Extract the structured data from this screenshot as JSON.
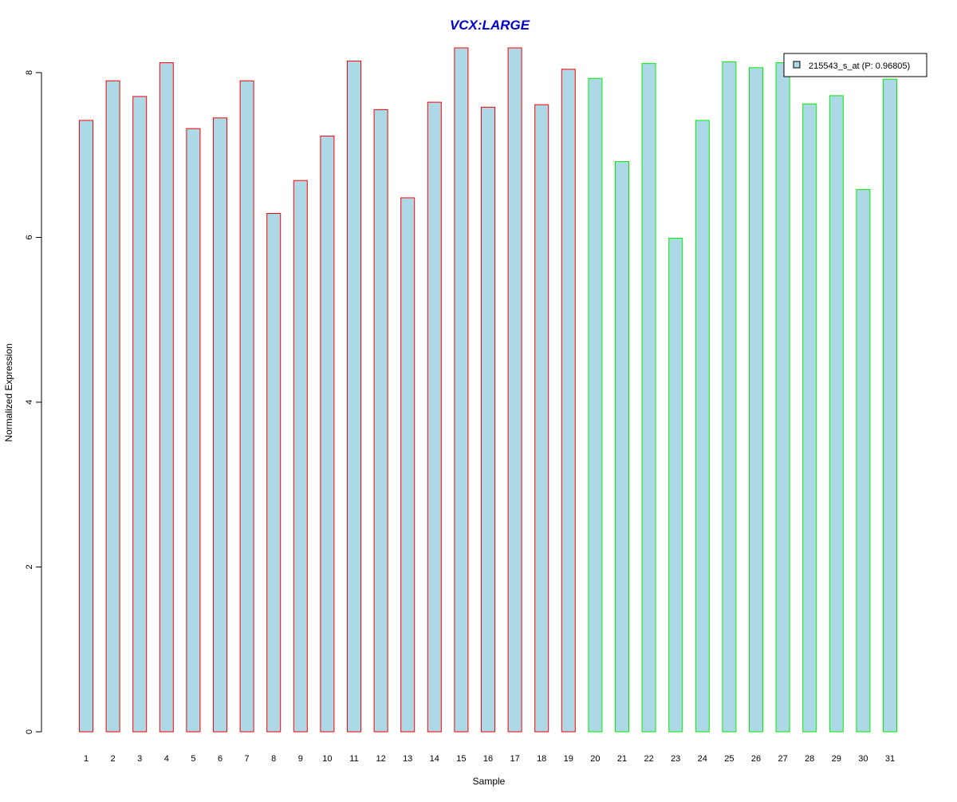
{
  "chart_data": {
    "type": "bar",
    "title": "VCX:LARGE",
    "xlabel": "Sample",
    "ylabel": "Normalized Expression",
    "categories": [
      "1",
      "2",
      "3",
      "4",
      "5",
      "6",
      "7",
      "8",
      "9",
      "10",
      "11",
      "12",
      "13",
      "14",
      "15",
      "16",
      "17",
      "18",
      "19",
      "20",
      "21",
      "22",
      "23",
      "24",
      "25",
      "26",
      "27",
      "28",
      "29",
      "30",
      "31"
    ],
    "series": [
      {
        "name": "215543_s_at (P: 0.96805)",
        "values": [
          7.42,
          7.9,
          7.71,
          8.12,
          7.32,
          7.45,
          7.9,
          6.29,
          6.69,
          7.23,
          8.14,
          7.55,
          6.48,
          7.64,
          8.3,
          7.58,
          8.3,
          7.61,
          8.04,
          7.93,
          6.92,
          8.11,
          5.99,
          7.42,
          8.13,
          8.06,
          8.12,
          7.62,
          7.72,
          6.58,
          7.92
        ]
      }
    ],
    "groups": [
      {
        "from": 1,
        "to": 19,
        "border_color": "#ff0000"
      },
      {
        "from": 20,
        "to": 31,
        "border_color": "#00ee00"
      }
    ],
    "bar_fill": "#add8e6",
    "title_color": "#0000cc",
    "ylim": [
      0,
      8.3
    ],
    "yticks": [
      0,
      2,
      4,
      6,
      8
    ],
    "grid": false,
    "legend_position": "top-right"
  }
}
